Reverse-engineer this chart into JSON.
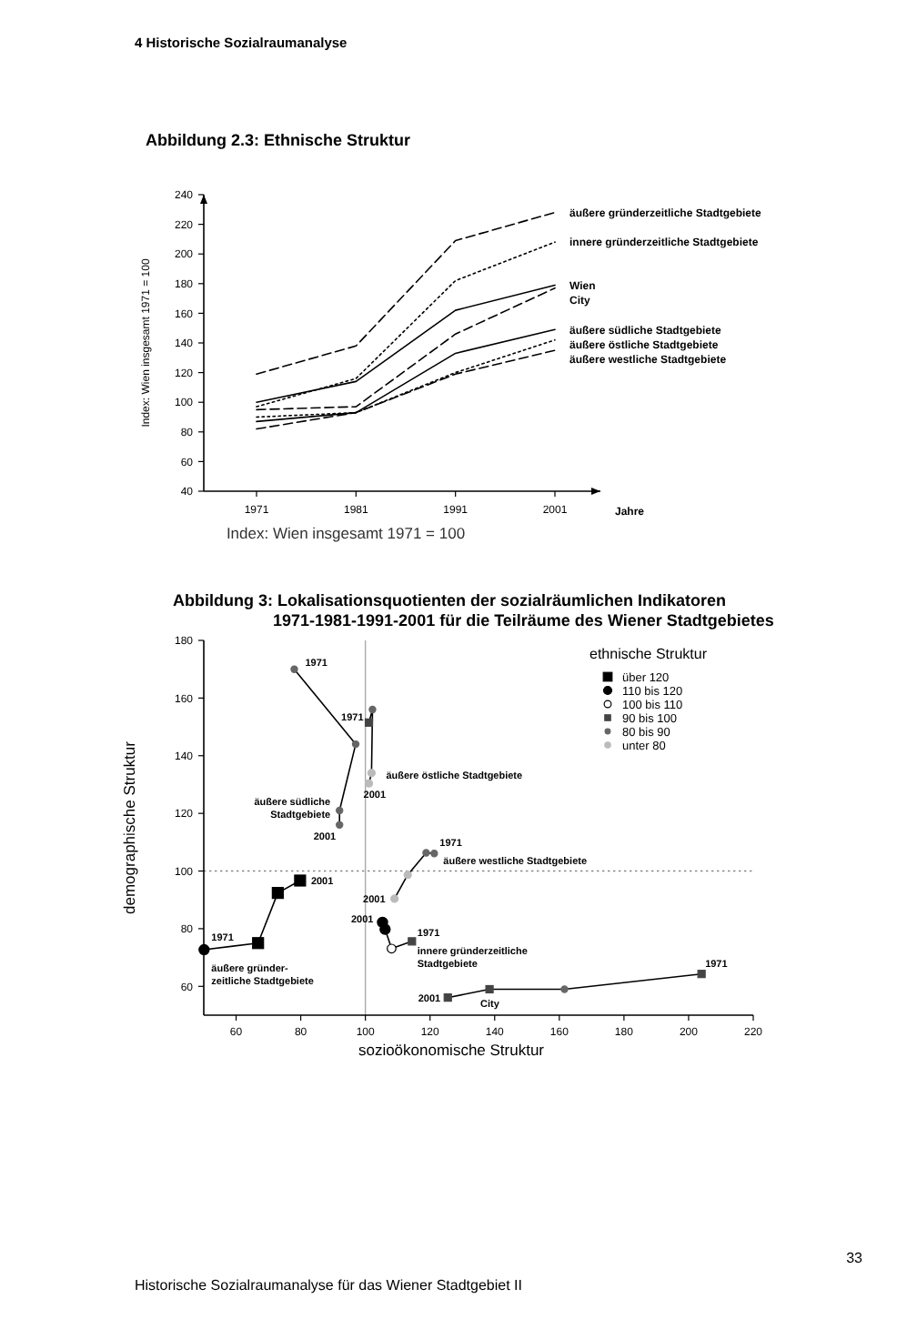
{
  "chart_data": [
    {
      "type": "line",
      "title": "Abbildung 2.3: Ethnische Struktur",
      "xlabel": "Jahre",
      "ylabel": "Index: Wien insgesamt 1971 = 100",
      "categories": [
        "1971",
        "1981",
        "1991",
        "2001"
      ],
      "series": [
        {
          "name": "äußere gründerzeitliche Stadtgebiete",
          "color": "#000000",
          "line_style": "dashed",
          "values": [
            119,
            138,
            209,
            228
          ]
        },
        {
          "name": "innere gründerzeitliche Stadtgebiete",
          "color": "#000000",
          "line_style": "dotted",
          "values": [
            97,
            116,
            182,
            208
          ]
        },
        {
          "name": "Wien",
          "color": "#000000",
          "line_style": "solid",
          "values": [
            100,
            114,
            162,
            179
          ]
        },
        {
          "name": "City",
          "color": "#000000",
          "line_style": "dashed",
          "values": [
            95,
            97,
            146,
            177
          ]
        },
        {
          "name": "äußere südliche Stadtgebiete",
          "color": "#000000",
          "line_style": "solid",
          "values": [
            87,
            93,
            133,
            149
          ]
        },
        {
          "name": "äußere östliche Stadtgebiete",
          "color": "#000000",
          "line_style": "dotted",
          "values": [
            90,
            93,
            120,
            142
          ]
        },
        {
          "name": "äußere westliche Stadtgebiete",
          "color": "#000000",
          "line_style": "dashed",
          "values": [
            82,
            93,
            119,
            135
          ]
        }
      ],
      "ylim": [
        40,
        240
      ],
      "yticks": [
        40,
        60,
        80,
        100,
        120,
        140,
        160,
        180,
        200,
        220,
        240
      ],
      "grid": false,
      "legend": false,
      "annotations": [
        "4 Historische Sozialraumanalyse",
        "Index: Wien insgesamt 1971 = 100"
      ]
    },
    {
      "type": "scatter",
      "title": "Abbildung 3: Lokalisationsquotienten der sozialräumlichen Indikatoren\n1971-1981-1991-2001 für die Teilräume des Wiener Stadtgebietes",
      "xlabel": "sozioökonomische Struktur",
      "ylabel": "demographische Struktur",
      "legend_title": "ethnische Struktur",
      "series": [
        {
          "type": "line",
          "color": "#000000",
          "line_style": "solid",
          "x": [
            78,
            97,
            92,
            92
          ],
          "values": [
            170,
            144,
            121,
            116
          ]
        },
        {
          "type": "line",
          "color": "#000000",
          "line_style": "solid",
          "x": [
            101.1,
            102.2,
            101.9,
            101.1
          ],
          "values": [
            151.5,
            156,
            134,
            130.4
          ]
        },
        {
          "type": "line",
          "color": "#000000",
          "line_style": "solid",
          "x": [
            121.3,
            118.8,
            113.1,
            109
          ],
          "values": [
            106.1,
            106.3,
            98.7,
            90.4
          ]
        },
        {
          "type": "line",
          "color": "#000000",
          "line_style": "solid",
          "x": [
            114.4,
            108.1,
            106.1,
            105.3
          ],
          "values": [
            75.6,
            73.1,
            79.8,
            82.2
          ]
        },
        {
          "type": "line",
          "color": "#000000",
          "line_style": "solid",
          "x": [
            204,
            161.6,
            138.4,
            125.5
          ],
          "values": [
            64.3,
            59,
            59,
            56.1
          ]
        },
        {
          "type": "line",
          "color": "#000000",
          "line_style": "solid",
          "x": [
            50.1,
            66.8,
            72.9,
            79.8
          ],
          "values": [
            72.7,
            75,
            92.4,
            96.7
          ]
        },
        {
          "name": "über 120",
          "marker": "square",
          "color": "#000000",
          "x": [
            66.8,
            72.9,
            79.8
          ],
          "values": [
            75,
            92.4,
            96.7
          ]
        },
        {
          "name": "110 bis 120",
          "marker": "circle",
          "color": "#000000",
          "x": [
            50.1,
            106.1,
            105.3
          ],
          "values": [
            72.7,
            79.8,
            82.2
          ]
        },
        {
          "name": "100 bis 110",
          "marker": "circle",
          "color": "#ffffff",
          "x": [
            108.1
          ],
          "values": [
            73.1
          ]
        },
        {
          "name": "90 bis 100",
          "marker": "square",
          "color": "#444444",
          "x": [
            114.4,
            204,
            138.4,
            125.5,
            101.1
          ],
          "values": [
            75.6,
            64.3,
            59,
            56.1,
            151.5
          ]
        },
        {
          "name": "80 bis 90",
          "marker": "circle",
          "color": "#666666",
          "x": [
            161.6,
            78,
            97,
            92,
            92,
            102.2,
            121.3,
            118.8
          ],
          "values": [
            59,
            170,
            144,
            121,
            116,
            156,
            106.1,
            106.3
          ]
        },
        {
          "name": "unter 80",
          "marker": "circle",
          "color": "#bbbbbb",
          "x": [
            101.9,
            101.1,
            113.1,
            109
          ],
          "values": [
            134,
            130.4,
            98.7,
            90.4
          ]
        }
      ],
      "xlim": [
        50,
        220
      ],
      "xticks": [
        60,
        80,
        100,
        120,
        140,
        160,
        180,
        200,
        220
      ],
      "ylim": [
        50,
        180
      ],
      "yticks": [
        60,
        80,
        100,
        120,
        140,
        160,
        180
      ],
      "grid": false,
      "legend": "top right",
      "ref_lines": [
        {
          "axis": "x",
          "value": 100,
          "color": "#aaaaaa",
          "line_style": "solid"
        },
        {
          "axis": "y",
          "value": 100,
          "color": "#888888",
          "line_style": "dotted"
        }
      ],
      "annotations": [
        "33",
        "Historische Sozialraumanalyse für das Wiener Stadtgebiet II",
        {
          "text": "1971",
          "x": 78,
          "y": 170
        },
        {
          "text": "2001",
          "x": 92,
          "y": 116
        },
        {
          "text": "äußere südliche\nStadtgebiete",
          "x": 92,
          "y": 121
        },
        {
          "text": "1971",
          "x": 101.1,
          "y": 151.5
        },
        {
          "text": "2001",
          "x": 101.1,
          "y": 130.4
        },
        {
          "text": "äußere östliche Stadtgebiete",
          "x": 101.9,
          "y": 134
        },
        {
          "text": "1971",
          "x": 121.3,
          "y": 106.1
        },
        {
          "text": "äußere westliche Stadtgebiete",
          "x": 121.3,
          "y": 106.1
        },
        {
          "text": "2001",
          "x": 109,
          "y": 90.4
        },
        {
          "text": "2001",
          "x": 105.3,
          "y": 82.2
        },
        {
          "text": "1971",
          "x": 114.4,
          "y": 75.6
        },
        {
          "text": "innere gründerzeitliche\nStadtgebiete",
          "x": 114.4,
          "y": 75.6
        },
        {
          "text": "1971",
          "x": 204,
          "y": 64.3
        },
        {
          "text": "2001",
          "x": 125.5,
          "y": 56.1
        },
        {
          "text": "City",
          "x": 138.4,
          "y": 59
        },
        {
          "text": "1971",
          "x": 50.1,
          "y": 72.7
        },
        {
          "text": "2001",
          "x": 79.8,
          "y": 96.7
        },
        {
          "text": "äußere gründer-\nzeitliche Stadtgebiete",
          "x": 50.1,
          "y": 72.7
        }
      ]
    }
  ]
}
